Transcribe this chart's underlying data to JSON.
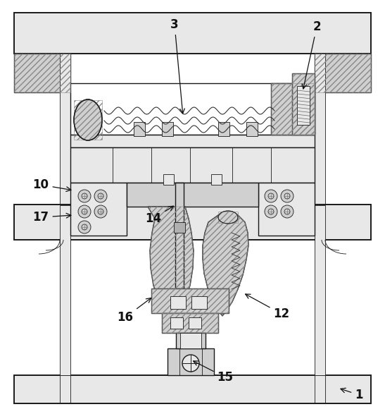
{
  "background_color": "#ffffff",
  "line_color": "#1a1a1a",
  "figsize": [
    5.47,
    5.87
  ],
  "dpi": 100,
  "gray_light": "#e8e8e8",
  "gray_mid": "#d0d0d0",
  "gray_dark": "#b0b0b0",
  "hatch_gray": "#888888"
}
